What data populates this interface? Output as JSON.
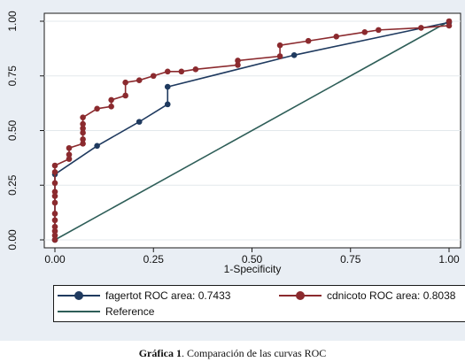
{
  "chart_data": {
    "type": "line",
    "xlabel": "1-Specificity",
    "ylabel": "",
    "xlim": [
      0,
      1
    ],
    "ylim": [
      0,
      1
    ],
    "x_ticks": [
      "0.00",
      "0.25",
      "0.50",
      "0.75",
      "1.00"
    ],
    "y_ticks": [
      "0.00",
      "0.25",
      "0.50",
      "0.75",
      "1.00"
    ],
    "grid": true,
    "legend_placement": "bottom",
    "series": [
      {
        "name": "fagertot ROC area: 0.7433",
        "color": "#1f3a5f",
        "markers": true,
        "points": [
          [
            0,
            0
          ],
          [
            0,
            0.3
          ],
          [
            0.107,
            0.43
          ],
          [
            0.214,
            0.54
          ],
          [
            0.286,
            0.62
          ],
          [
            0.286,
            0.7
          ],
          [
            0.607,
            0.845
          ],
          [
            1,
            0.995
          ]
        ]
      },
      {
        "name": "cdnicoto ROC area: 0.8038",
        "color": "#8b2a2e",
        "markers": true,
        "points": [
          [
            0,
            0
          ],
          [
            0,
            0.02
          ],
          [
            0,
            0.04
          ],
          [
            0,
            0.06
          ],
          [
            0,
            0.09
          ],
          [
            0,
            0.12
          ],
          [
            0,
            0.17
          ],
          [
            0,
            0.2
          ],
          [
            0,
            0.22
          ],
          [
            0,
            0.26
          ],
          [
            0,
            0.31
          ],
          [
            0,
            0.34
          ],
          [
            0.036,
            0.37
          ],
          [
            0.036,
            0.39
          ],
          [
            0.036,
            0.42
          ],
          [
            0.071,
            0.44
          ],
          [
            0.071,
            0.46
          ],
          [
            0.071,
            0.49
          ],
          [
            0.071,
            0.51
          ],
          [
            0.071,
            0.53
          ],
          [
            0.071,
            0.56
          ],
          [
            0.107,
            0.6
          ],
          [
            0.143,
            0.61
          ],
          [
            0.143,
            0.64
          ],
          [
            0.179,
            0.66
          ],
          [
            0.179,
            0.72
          ],
          [
            0.214,
            0.73
          ],
          [
            0.25,
            0.75
          ],
          [
            0.286,
            0.77
          ],
          [
            0.321,
            0.77
          ],
          [
            0.357,
            0.78
          ],
          [
            0.464,
            0.8
          ],
          [
            0.464,
            0.82
          ],
          [
            0.571,
            0.84
          ],
          [
            0.571,
            0.89
          ],
          [
            0.643,
            0.91
          ],
          [
            0.714,
            0.93
          ],
          [
            0.786,
            0.95
          ],
          [
            0.821,
            0.96
          ],
          [
            0.929,
            0.97
          ],
          [
            1,
            0.98
          ],
          [
            1,
            1
          ]
        ]
      },
      {
        "name": "Reference",
        "color": "#2e5e58",
        "markers": false,
        "points": [
          [
            0,
            0
          ],
          [
            1,
            1
          ]
        ]
      }
    ]
  },
  "caption": {
    "label": "Gráfica 1",
    "text": ". Comparación de las curvas ROC"
  }
}
